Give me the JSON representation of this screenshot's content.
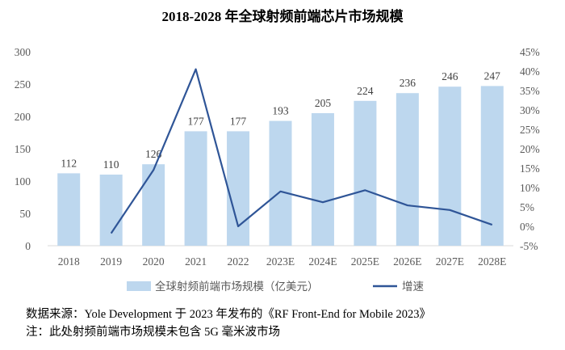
{
  "chart_data": {
    "type": "bar+line",
    "title": "2018-2028 年全球射频前端芯片市场规模",
    "categories": [
      "2018",
      "2019",
      "2020",
      "2021",
      "2022",
      "2023E",
      "2024E",
      "2025E",
      "2026E",
      "2027E",
      "2028E"
    ],
    "series": [
      {
        "name": "全球射频前端市场规模（亿美元）",
        "type": "bar",
        "axis": "left",
        "color": "#BDD7EE",
        "values": [
          112,
          110,
          126,
          177,
          177,
          193,
          205,
          224,
          236,
          246,
          247
        ]
      },
      {
        "name": "增速",
        "type": "line",
        "axis": "right",
        "color": "#2F5597",
        "values": [
          null,
          -1.8,
          14.5,
          40.5,
          0.0,
          9.0,
          6.2,
          9.3,
          5.4,
          4.2,
          0.4
        ]
      }
    ],
    "left_axis": {
      "ylim": [
        0,
        300
      ],
      "ticks": [
        "0",
        "50",
        "100",
        "150",
        "200",
        "250",
        "300"
      ]
    },
    "right_axis": {
      "ylim": [
        -5,
        45
      ],
      "ticks": [
        "-5%",
        "0%",
        "5%",
        "10%",
        "15%",
        "20%",
        "25%",
        "30%",
        "35%",
        "40%",
        "45%"
      ]
    },
    "legend_position": "bottom",
    "grid": false
  },
  "footnotes": {
    "source": "数据来源：Yole Development 于 2023 年发布的《RF Front-End for Mobile 2023》",
    "note": "注：此处射频前端市场规模未包含 5G 毫米波市场"
  }
}
